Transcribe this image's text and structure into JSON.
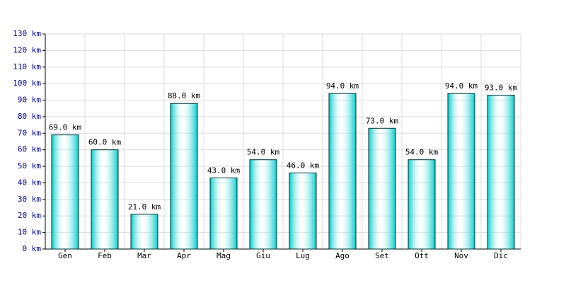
{
  "chart_data": {
    "type": "bar",
    "categories": [
      "Gen",
      "Feb",
      "Mar",
      "Apr",
      "Mag",
      "Giu",
      "Lug",
      "Ago",
      "Set",
      "Ott",
      "Nov",
      "Dic"
    ],
    "values": [
      69,
      60,
      21,
      88,
      43,
      54,
      46,
      94,
      73,
      54,
      94,
      93
    ],
    "value_labels": [
      "69.0 km",
      "60.0 km",
      "21.0 km",
      "88.0 km",
      "43.0 km",
      "54.0 km",
      "46.0 km",
      "94.0 km",
      "73.0 km",
      "54.0 km",
      "94.0 km",
      "93.0 km"
    ],
    "color": "#00cccc",
    "ylim": [
      0,
      130
    ],
    "yticks": [
      {
        "value": 0,
        "label": "0 km"
      },
      {
        "value": 10,
        "label": "10 km"
      },
      {
        "value": 20,
        "label": "20 km"
      },
      {
        "value": 30,
        "label": "30 km"
      },
      {
        "value": 40,
        "label": "40 km"
      },
      {
        "value": 50,
        "label": "50 km"
      },
      {
        "value": 60,
        "label": "60 km"
      },
      {
        "value": 70,
        "label": "70 km"
      },
      {
        "value": 80,
        "label": "80 km"
      },
      {
        "value": 90,
        "label": "90 km"
      },
      {
        "value": 100,
        "label": "100 km"
      },
      {
        "value": 110,
        "label": "110 km"
      },
      {
        "value": 120,
        "label": "120 km"
      },
      {
        "value": 130,
        "label": "130 km"
      }
    ],
    "grid": true
  }
}
